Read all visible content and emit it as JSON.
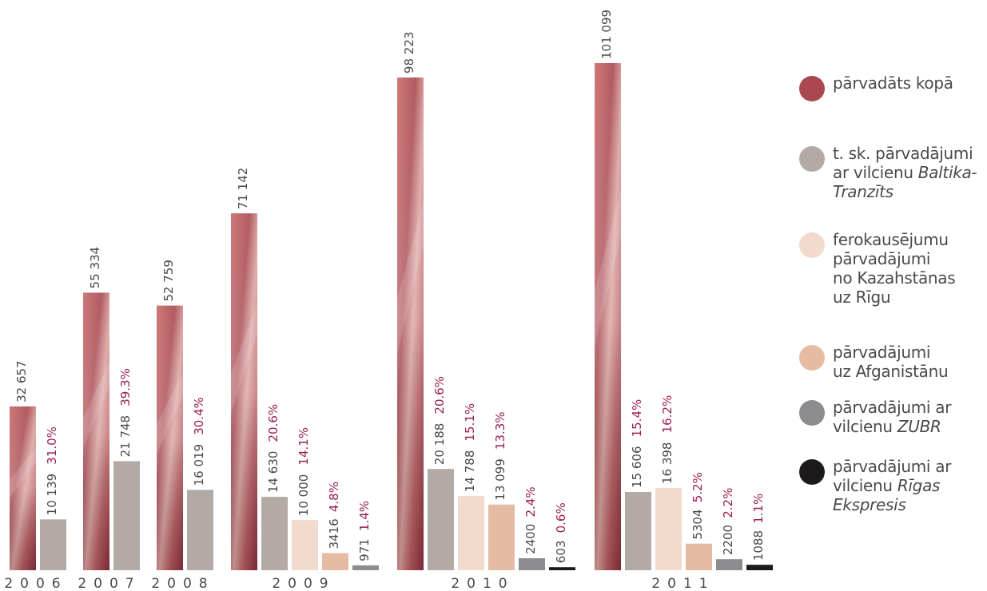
{
  "chart_data": {
    "type": "bar",
    "value_unit_note": "",
    "ylim": [
      0,
      101099
    ],
    "groups": [
      {
        "year": "2006",
        "bars": [
          {
            "series": "total",
            "value": 32657,
            "label": "32 657"
          },
          {
            "series": "baltika",
            "value": 10139,
            "label": "10 139",
            "pct": "31.0%"
          }
        ]
      },
      {
        "year": "2007",
        "bars": [
          {
            "series": "total",
            "value": 55334,
            "label": "55 334"
          },
          {
            "series": "baltika",
            "value": 21748,
            "label": "21 748",
            "pct": "39.3%"
          }
        ]
      },
      {
        "year": "2008",
        "bars": [
          {
            "series": "total",
            "value": 52759,
            "label": "52 759"
          },
          {
            "series": "baltika",
            "value": 16019,
            "label": "16 019",
            "pct": "30.4%"
          }
        ]
      },
      {
        "year": "2009",
        "bars": [
          {
            "series": "total",
            "value": 71142,
            "label": "71 142"
          },
          {
            "series": "baltika",
            "value": 14630,
            "label": "14 630",
            "pct": "20.6%"
          },
          {
            "series": "ferro",
            "value": 10000,
            "label": "10 000",
            "pct": "14.1%"
          },
          {
            "series": "afgan",
            "value": 3416,
            "label": "3416",
            "pct": "4.8%"
          },
          {
            "series": "zubr",
            "value": 971,
            "label": "971",
            "pct": "1.4%"
          }
        ]
      },
      {
        "year": "2010",
        "bars": [
          {
            "series": "total",
            "value": 98223,
            "label": "98 223"
          },
          {
            "series": "baltika",
            "value": 20188,
            "label": "20 188",
            "pct": "20.6%"
          },
          {
            "series": "ferro",
            "value": 14788,
            "label": "14 788",
            "pct": "15.1%"
          },
          {
            "series": "afgan",
            "value": 13099,
            "label": "13 099",
            "pct": "13.3%"
          },
          {
            "series": "zubr",
            "value": 2400,
            "label": "2400",
            "pct": "2.4%"
          },
          {
            "series": "riga",
            "value": 603,
            "label": "603",
            "pct": "0.6%"
          }
        ]
      },
      {
        "year": "2011",
        "bars": [
          {
            "series": "total",
            "value": 101099,
            "label": "101 099"
          },
          {
            "series": "baltika",
            "value": 15606,
            "label": "15 606",
            "pct": "15.4%"
          },
          {
            "series": "ferro",
            "value": 16398,
            "label": "16 398",
            "pct": "16.2%"
          },
          {
            "series": "afgan",
            "value": 5304,
            "label": "5304",
            "pct": "5.2%"
          },
          {
            "series": "zubr",
            "value": 2200,
            "label": "2200",
            "pct": "2.2%"
          },
          {
            "series": "riga",
            "value": 1088,
            "label": "1088",
            "pct": "1.1%"
          }
        ]
      }
    ],
    "series": [
      {
        "key": "total",
        "color": "#a9484f",
        "name": "pārvadāts kopā"
      },
      {
        "key": "baltika",
        "color": "#b3aaa6",
        "name": "t. sk. pārvadājumi ar vilcienu Baltika-Tranzīts"
      },
      {
        "key": "ferro",
        "color": "#f2dacd",
        "name": "ferokausējumu pārvadājumi no Kazahstānas uz Rīgu"
      },
      {
        "key": "afgan",
        "color": "#e5bca3",
        "name": "pārvadājumi uz Afganistānu"
      },
      {
        "key": "zubr",
        "color": "#8c8b8e",
        "name": "pārvadājumi ar vilcienu ZUBR"
      },
      {
        "key": "riga",
        "color": "#1c1a1b",
        "name": "pārvadājumi ar vilcienu Rīgas Ekspresis"
      }
    ]
  },
  "legend": [
    {
      "key": "total",
      "lines": [
        [
          "pārvadāts kopā"
        ]
      ]
    },
    {
      "key": "baltika",
      "lines": [
        [
          "t. sk. pārvadājumi"
        ],
        [
          "ar vilcienu ",
          "Baltika-"
        ],
        [
          "",
          "Tranzīts"
        ]
      ]
    },
    {
      "key": "ferro",
      "lines": [
        [
          "ferokausējumu"
        ],
        [
          "pārvadājumi"
        ],
        [
          "no Kazahstānas"
        ],
        [
          "uz Rīgu"
        ]
      ]
    },
    {
      "key": "afgan",
      "lines": [
        [
          "pārvadājumi"
        ],
        [
          "uz Afganistānu"
        ]
      ]
    },
    {
      "key": "zubr",
      "lines": [
        [
          "pārvadājumi ar"
        ],
        [
          "vilcienu ",
          "ZUBR"
        ]
      ]
    },
    {
      "key": "riga",
      "lines": [
        [
          "pārvadājumi ar"
        ],
        [
          "vilcienu ",
          "Rīgas"
        ],
        [
          "",
          "Ekspresis"
        ]
      ]
    }
  ],
  "colors": {
    "value_label": "#4a4a4a",
    "pct_label": "#9b1d52",
    "year_label": "#4a4a4a",
    "total_gradient_dark": "#8a2f3c",
    "total_gradient_light": "#dba1a0"
  }
}
